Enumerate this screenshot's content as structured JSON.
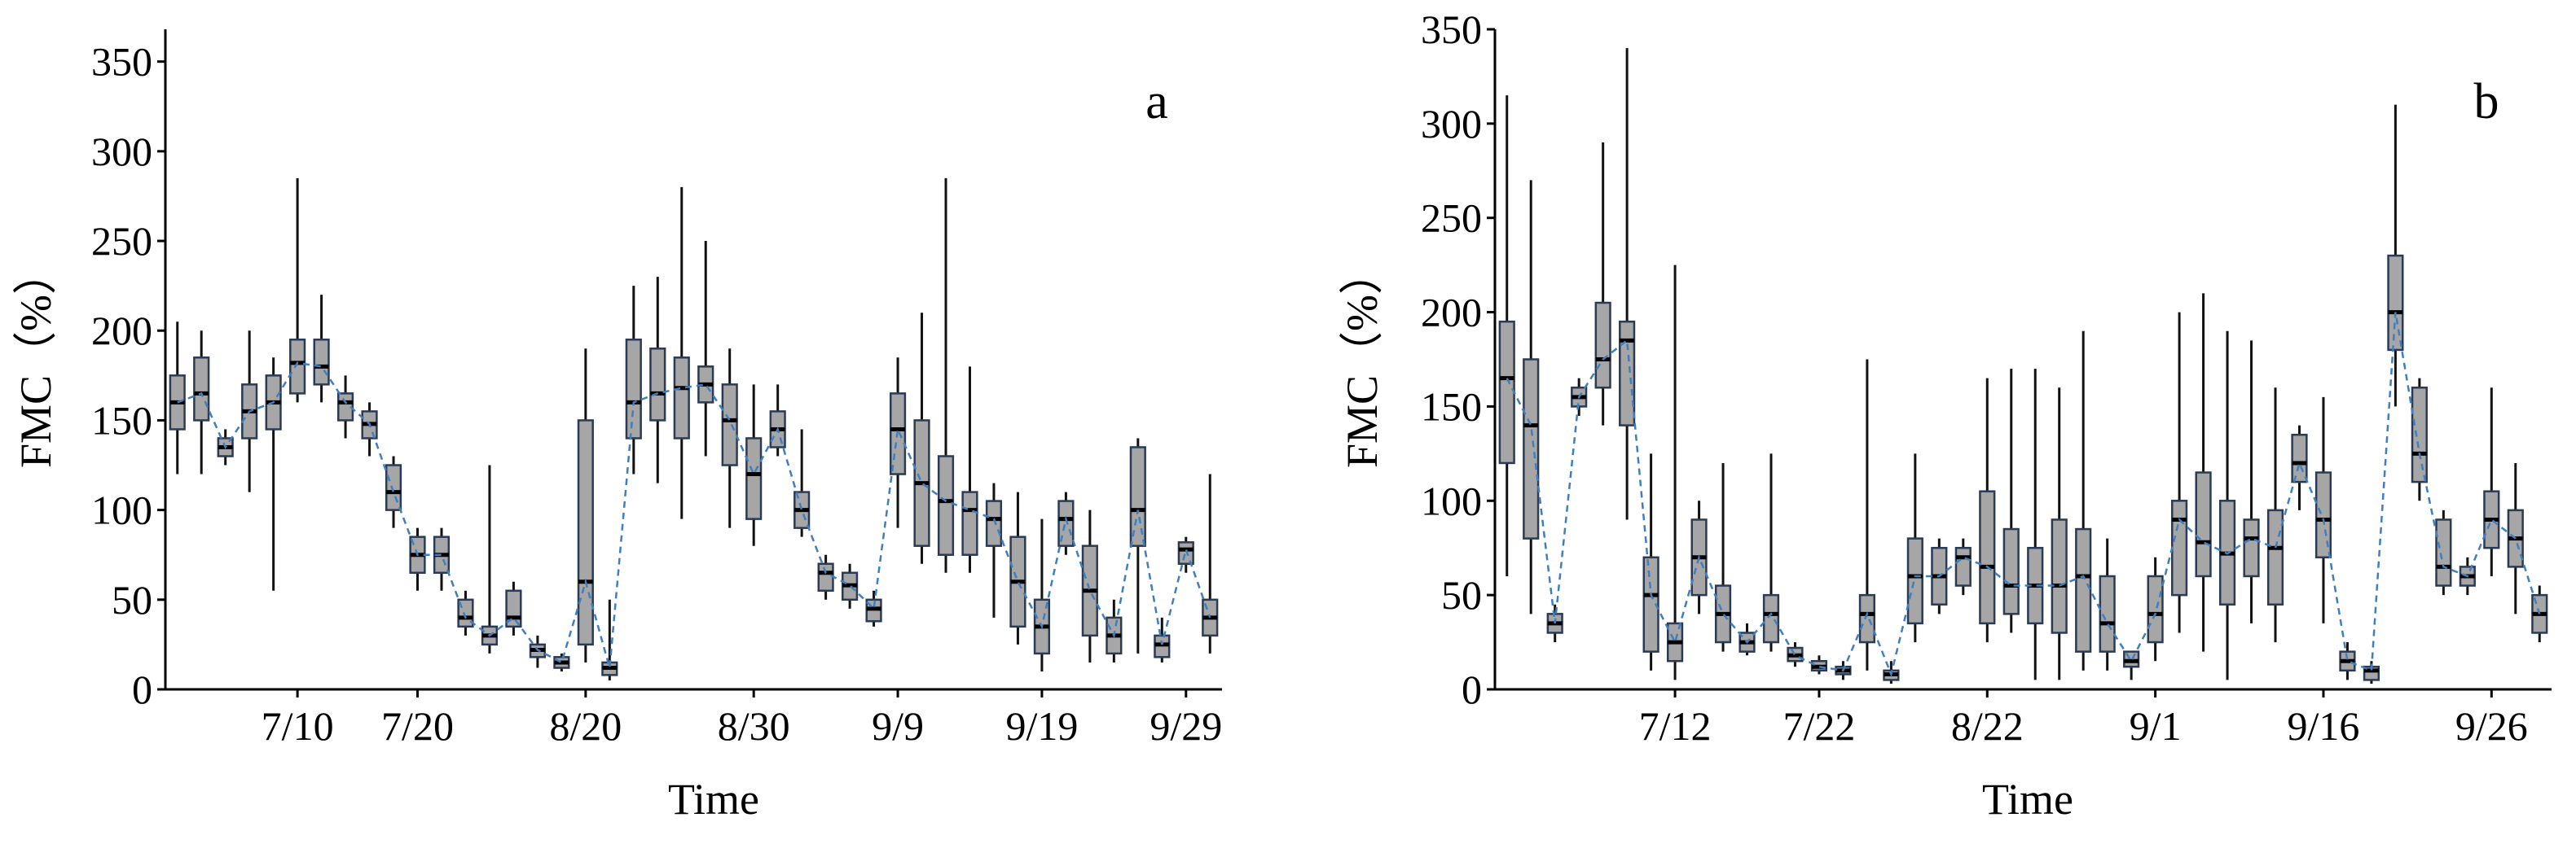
{
  "chart_data": [
    {
      "type": "box",
      "label": "a",
      "x_label": "Time",
      "y_label": "FMC（%）",
      "categories": [
        null,
        null,
        null,
        null,
        null,
        "7/10",
        null,
        null,
        null,
        null,
        "7/20",
        null,
        null,
        null,
        null,
        null,
        null,
        "8/20",
        null,
        null,
        null,
        null,
        null,
        null,
        "8/30",
        null,
        null,
        null,
        null,
        null,
        "9/9",
        null,
        null,
        null,
        null,
        null,
        "9/19",
        null,
        null,
        null,
        null,
        null,
        "9/29",
        null
      ],
      "min": [
        120,
        120,
        125,
        110,
        55,
        160,
        160,
        140,
        130,
        90,
        55,
        55,
        30,
        20,
        30,
        12,
        10,
        15,
        5,
        120,
        115,
        95,
        130,
        90,
        80,
        130,
        85,
        50,
        45,
        35,
        90,
        70,
        65,
        65,
        40,
        25,
        10,
        75,
        15,
        15,
        20,
        15,
        65,
        20
      ],
      "q1": [
        145,
        150,
        130,
        140,
        145,
        165,
        170,
        150,
        140,
        100,
        65,
        65,
        35,
        25,
        35,
        18,
        12,
        25,
        8,
        140,
        150,
        140,
        160,
        125,
        95,
        135,
        90,
        55,
        50,
        38,
        120,
        80,
        75,
        75,
        80,
        35,
        20,
        80,
        30,
        20,
        80,
        18,
        70,
        30
      ],
      "median": [
        160,
        165,
        135,
        155,
        160,
        182,
        180,
        160,
        148,
        110,
        75,
        75,
        40,
        30,
        40,
        22,
        15,
        60,
        12,
        160,
        165,
        168,
        170,
        150,
        120,
        145,
        100,
        65,
        58,
        45,
        145,
        115,
        105,
        100,
        95,
        60,
        35,
        95,
        55,
        30,
        100,
        25,
        78,
        40
      ],
      "q3": [
        175,
        185,
        140,
        170,
        175,
        195,
        195,
        165,
        155,
        125,
        85,
        85,
        50,
        35,
        55,
        25,
        18,
        150,
        15,
        195,
        190,
        185,
        180,
        170,
        140,
        155,
        110,
        70,
        65,
        50,
        165,
        150,
        130,
        110,
        105,
        85,
        50,
        105,
        80,
        40,
        135,
        30,
        82,
        50
      ],
      "max": [
        205,
        200,
        145,
        200,
        185,
        285,
        220,
        175,
        160,
        130,
        90,
        90,
        55,
        125,
        60,
        30,
        20,
        190,
        50,
        225,
        230,
        280,
        250,
        190,
        170,
        170,
        145,
        75,
        70,
        55,
        185,
        210,
        285,
        180,
        115,
        110,
        95,
        110,
        100,
        50,
        140,
        40,
        85,
        120
      ],
      "ylim": [
        0,
        368
      ],
      "yticks": [
        0,
        50,
        100,
        150,
        200,
        250,
        300,
        350
      ],
      "box_color": "#a6a6a6",
      "line_color": "#3f7fc0"
    },
    {
      "type": "box",
      "label": "b",
      "x_label": "Time",
      "y_label": "FMC（%）",
      "categories": [
        null,
        null,
        null,
        null,
        null,
        null,
        null,
        "7/12",
        null,
        null,
        null,
        null,
        null,
        "7/22",
        null,
        null,
        null,
        null,
        null,
        null,
        "8/22",
        null,
        null,
        null,
        null,
        null,
        null,
        "9/1",
        null,
        null,
        null,
        null,
        null,
        null,
        "9/16",
        null,
        null,
        null,
        null,
        null,
        null,
        "9/26",
        null,
        null
      ],
      "min": [
        60,
        40,
        25,
        145,
        140,
        90,
        10,
        5,
        40,
        20,
        18,
        20,
        12,
        8,
        5,
        10,
        3,
        25,
        40,
        50,
        25,
        30,
        5,
        5,
        10,
        10,
        5,
        15,
        30,
        20,
        5,
        35,
        25,
        95,
        35,
        5,
        3,
        150,
        100,
        50,
        50,
        60,
        40,
        25
      ],
      "q1": [
        120,
        80,
        30,
        150,
        160,
        140,
        20,
        15,
        50,
        25,
        20,
        25,
        15,
        10,
        8,
        25,
        5,
        35,
        45,
        55,
        35,
        40,
        35,
        30,
        20,
        20,
        12,
        25,
        50,
        60,
        45,
        60,
        45,
        110,
        70,
        10,
        5,
        180,
        110,
        55,
        55,
        75,
        65,
        30
      ],
      "median": [
        165,
        140,
        35,
        155,
        175,
        185,
        50,
        25,
        70,
        40,
        25,
        40,
        18,
        12,
        10,
        40,
        8,
        60,
        60,
        70,
        65,
        55,
        55,
        55,
        60,
        35,
        15,
        40,
        90,
        78,
        72,
        80,
        75,
        120,
        90,
        15,
        10,
        200,
        125,
        65,
        60,
        90,
        80,
        40
      ],
      "q3": [
        195,
        175,
        40,
        160,
        205,
        195,
        70,
        35,
        90,
        55,
        30,
        50,
        22,
        15,
        12,
        50,
        10,
        80,
        75,
        75,
        105,
        85,
        75,
        90,
        85,
        60,
        20,
        60,
        100,
        115,
        100,
        90,
        95,
        135,
        115,
        20,
        12,
        230,
        160,
        90,
        65,
        105,
        95,
        50
      ],
      "max": [
        315,
        270,
        45,
        165,
        290,
        340,
        125,
        225,
        100,
        120,
        35,
        125,
        25,
        18,
        15,
        175,
        15,
        125,
        80,
        80,
        165,
        170,
        170,
        160,
        190,
        80,
        20,
        70,
        200,
        210,
        190,
        185,
        160,
        140,
        155,
        25,
        15,
        310,
        165,
        95,
        70,
        160,
        120,
        55
      ],
      "ylim": [
        0,
        350
      ],
      "yticks": [
        0,
        50,
        100,
        150,
        200,
        250,
        300,
        350
      ],
      "box_color": "#a6a6a6",
      "line_color": "#3f7fc0"
    }
  ]
}
